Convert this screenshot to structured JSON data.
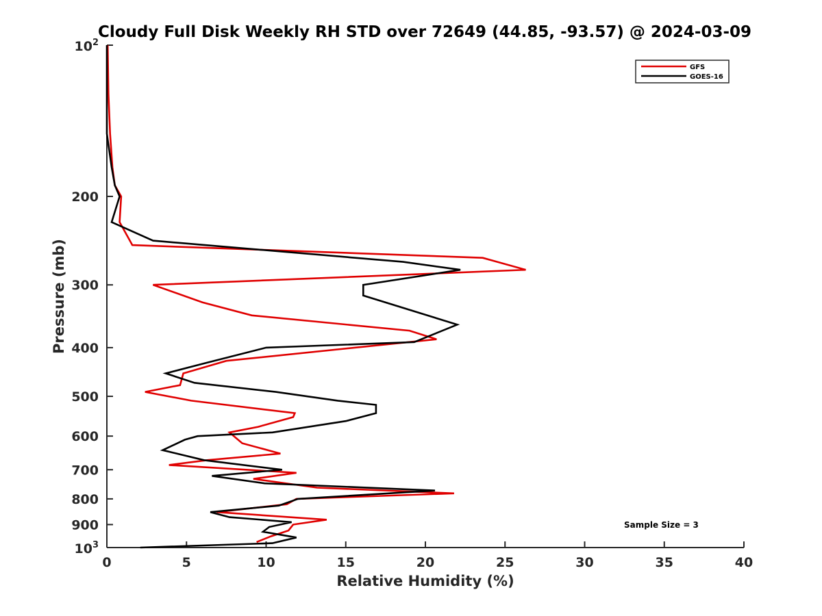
{
  "chart_data": {
    "type": "line",
    "title": "Cloudy Full Disk Weekly RH STD over 72649 (44.85, -93.57) @ 2024-03-09",
    "xlabel": "Relative Humidity (%)",
    "ylabel": "Pressure (mb)",
    "xlim": [
      0,
      40
    ],
    "ylim": [
      100,
      1000
    ],
    "yscale": "log",
    "y_reversed": true,
    "grid": false,
    "legend_position": "top-right",
    "x_ticks": [
      "0",
      "5",
      "10",
      "15",
      "20",
      "25",
      "30",
      "35",
      "40"
    ],
    "y_ticks": [
      {
        "value": 100,
        "base": "10",
        "exp": "2"
      },
      {
        "value": 200,
        "label": "200"
      },
      {
        "value": 300,
        "label": "300"
      },
      {
        "value": 400,
        "label": "400"
      },
      {
        "value": 500,
        "label": "500"
      },
      {
        "value": 600,
        "label": "600"
      },
      {
        "value": 700,
        "label": "700"
      },
      {
        "value": 800,
        "label": "800"
      },
      {
        "value": 900,
        "label": "900"
      },
      {
        "value": 1000,
        "base": "10",
        "exp": "3"
      }
    ],
    "series": [
      {
        "name": "GFS",
        "color": "#e00000",
        "points": [
          [
            0.05,
            100
          ],
          [
            0.1,
            125
          ],
          [
            0.2,
            150
          ],
          [
            0.35,
            175
          ],
          [
            0.5,
            190
          ],
          [
            0.9,
            200
          ],
          [
            0.8,
            225
          ],
          [
            1.6,
            250
          ],
          [
            23.6,
            265
          ],
          [
            26.3,
            280
          ],
          [
            2.9,
            300
          ],
          [
            6.0,
            325
          ],
          [
            9.1,
            345
          ],
          [
            19.0,
            370
          ],
          [
            20.7,
            385
          ],
          [
            7.5,
            425
          ],
          [
            4.8,
            450
          ],
          [
            4.6,
            475
          ],
          [
            2.4,
            490
          ],
          [
            5.3,
            510
          ],
          [
            11.8,
            540
          ],
          [
            11.7,
            550
          ],
          [
            9.5,
            575
          ],
          [
            7.7,
            590
          ],
          [
            8.5,
            620
          ],
          [
            10.9,
            650
          ],
          [
            6.3,
            670
          ],
          [
            3.9,
            685
          ],
          [
            11.9,
            710
          ],
          [
            9.2,
            730
          ],
          [
            13.2,
            760
          ],
          [
            21.8,
            780
          ],
          [
            11.9,
            800
          ],
          [
            11.3,
            820
          ],
          [
            6.9,
            850
          ],
          [
            13.8,
            880
          ],
          [
            11.7,
            900
          ],
          [
            11.4,
            925
          ],
          [
            10.3,
            950
          ],
          [
            9.4,
            975
          ]
        ]
      },
      {
        "name": "GOES-16",
        "color": "#000000",
        "points": [
          [
            0.0,
            100
          ],
          [
            0.0,
            150
          ],
          [
            0.3,
            175
          ],
          [
            0.5,
            190
          ],
          [
            0.8,
            200
          ],
          [
            0.3,
            225
          ],
          [
            2.9,
            245
          ],
          [
            18.6,
            270
          ],
          [
            22.2,
            280
          ],
          [
            16.1,
            300
          ],
          [
            16.1,
            315
          ],
          [
            22.0,
            360
          ],
          [
            19.3,
            390
          ],
          [
            10.0,
            400
          ],
          [
            6.1,
            430
          ],
          [
            3.7,
            450
          ],
          [
            5.5,
            470
          ],
          [
            10.6,
            490
          ],
          [
            14.5,
            510
          ],
          [
            16.9,
            520
          ],
          [
            16.9,
            540
          ],
          [
            15.0,
            560
          ],
          [
            10.4,
            590
          ],
          [
            5.7,
            600
          ],
          [
            4.9,
            610
          ],
          [
            3.5,
            640
          ],
          [
            6.1,
            670
          ],
          [
            11.0,
            700
          ],
          [
            6.6,
            720
          ],
          [
            9.9,
            745
          ],
          [
            20.6,
            770
          ],
          [
            12.0,
            800
          ],
          [
            10.8,
            825
          ],
          [
            6.5,
            850
          ],
          [
            7.7,
            870
          ],
          [
            11.6,
            890
          ],
          [
            10.2,
            910
          ],
          [
            9.8,
            930
          ],
          [
            11.9,
            955
          ],
          [
            10.4,
            980
          ],
          [
            2.1,
            1000
          ]
        ]
      }
    ],
    "annotation": "Sample Size = 3"
  }
}
